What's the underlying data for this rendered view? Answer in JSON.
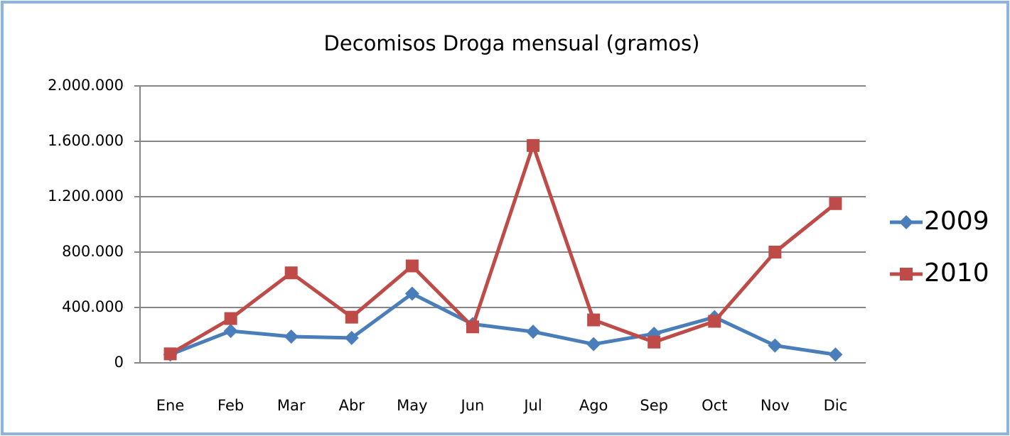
{
  "chart_data": {
    "type": "line",
    "title": "Decomisos Droga mensual (gramos)",
    "categories": [
      "Ene",
      "Feb",
      "Mar",
      "Abr",
      "May",
      "Jun",
      "Jul",
      "Ago",
      "Sep",
      "Oct",
      "Nov",
      "Dic"
    ],
    "series": [
      {
        "name": "2009",
        "color": "#4a7ebb",
        "marker": "diamond",
        "values": [
          60000,
          230000,
          190000,
          180000,
          500000,
          280000,
          225000,
          135000,
          210000,
          330000,
          125000,
          60000
        ]
      },
      {
        "name": "2010",
        "color": "#be4b48",
        "marker": "square",
        "values": [
          65000,
          320000,
          650000,
          330000,
          700000,
          260000,
          1570000,
          310000,
          150000,
          300000,
          800000,
          1150000
        ]
      }
    ],
    "ylim": [
      0,
      2000000
    ],
    "yticks": [
      0,
      {
        "value": 400000,
        "label": "400.000"
      },
      {
        "value": 800000,
        "label": "800.000"
      },
      {
        "value": 1200000,
        "label": "1.200.000"
      },
      {
        "value": 1600000,
        "label": "1.600.000"
      },
      {
        "value": 2000000,
        "label": "2.000.000"
      }
    ],
    "grid": true,
    "legend": "right"
  }
}
